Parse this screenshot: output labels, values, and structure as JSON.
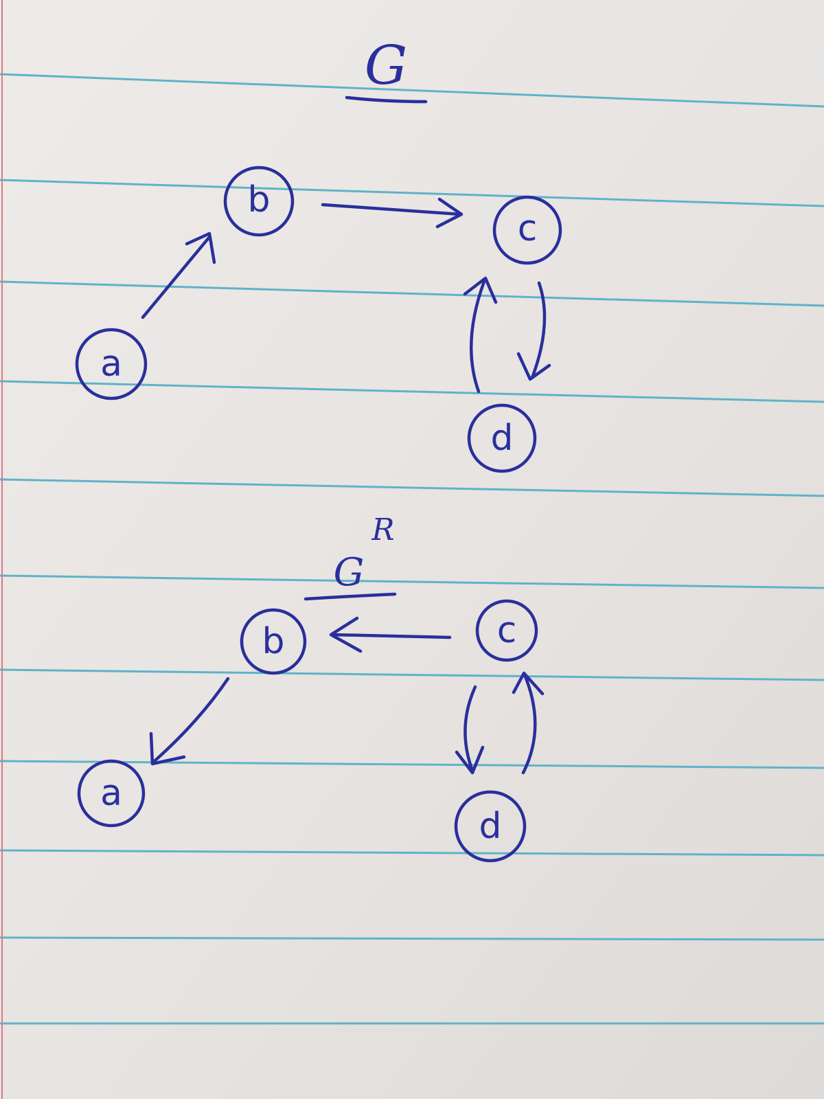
{
  "graph_top": {
    "title": "G",
    "nodes": [
      {
        "id": "a",
        "label": "a"
      },
      {
        "id": "b",
        "label": "b"
      },
      {
        "id": "c",
        "label": "c"
      },
      {
        "id": "d",
        "label": "d"
      }
    ],
    "edges": [
      {
        "from": "a",
        "to": "b"
      },
      {
        "from": "b",
        "to": "c"
      },
      {
        "from": "c",
        "to": "d"
      },
      {
        "from": "d",
        "to": "c"
      }
    ]
  },
  "graph_bottom": {
    "title": "G",
    "superscript": "R",
    "nodes": [
      {
        "id": "a",
        "label": "a"
      },
      {
        "id": "b",
        "label": "b"
      },
      {
        "id": "c",
        "label": "c"
      },
      {
        "id": "d",
        "label": "d"
      }
    ],
    "edges": [
      {
        "from": "b",
        "to": "a"
      },
      {
        "from": "c",
        "to": "b"
      },
      {
        "from": "c",
        "to": "d"
      },
      {
        "from": "d",
        "to": "c"
      }
    ]
  },
  "colors": {
    "ink": "#2a2f9c",
    "paper": "#e9e6e4",
    "rule": "#5fb3c7"
  }
}
